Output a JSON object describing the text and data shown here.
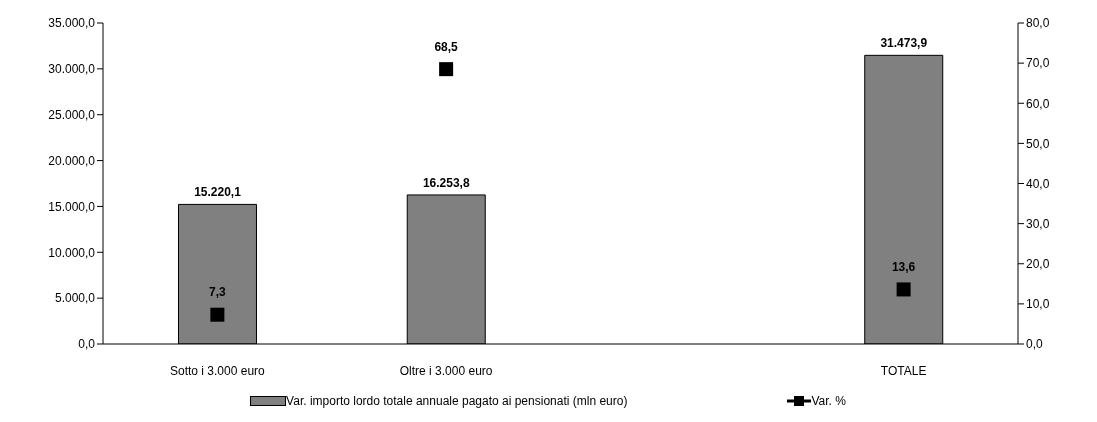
{
  "chart_data": {
    "type": "bar",
    "categories": [
      "Sotto i 3.000 euro",
      "Oltre i 3.000 euro",
      null,
      "TOTALE"
    ],
    "series": [
      {
        "name": "Var. importo lordo totale annuale pagato ai pensionati (mln euro)",
        "color": "#808080",
        "values": [
          15220.1,
          16253.8,
          null,
          31473.9
        ],
        "value_labels": [
          "15.220,1",
          "16.253,8",
          null,
          "31.473,9"
        ]
      },
      {
        "name": "Var. %",
        "type": "scatter",
        "axis": "y2",
        "marker": "square",
        "color": "#000000",
        "values": [
          7.3,
          68.5,
          null,
          13.6
        ],
        "value_labels": [
          "7,3",
          "68,5",
          null,
          "13,6"
        ]
      }
    ],
    "ylim": [
      0,
      35000
    ],
    "yticks": [
      {
        "value": 0,
        "label": "0,0"
      },
      {
        "value": 5000,
        "label": "5.000,0"
      },
      {
        "value": 10000,
        "label": "10.000,0"
      },
      {
        "value": 15000,
        "label": "15.000,0"
      },
      {
        "value": 20000,
        "label": "20.000,0"
      },
      {
        "value": 25000,
        "label": "25.000,0"
      },
      {
        "value": 30000,
        "label": "30.000,0"
      },
      {
        "value": 35000,
        "label": "35.000,0"
      }
    ],
    "y2lim": [
      0,
      80
    ],
    "y2ticks": [
      {
        "value": 0,
        "label": "0,0"
      },
      {
        "value": 10,
        "label": "10,0"
      },
      {
        "value": 20,
        "label": "20,0"
      },
      {
        "value": 30,
        "label": "30,0"
      },
      {
        "value": 40,
        "label": "40,0"
      },
      {
        "value": 50,
        "label": "50,0"
      },
      {
        "value": 60,
        "label": "60,0"
      },
      {
        "value": 70,
        "label": "70,0"
      },
      {
        "value": 80,
        "label": "80,0"
      }
    ],
    "legend": "bottom",
    "grid": false
  }
}
